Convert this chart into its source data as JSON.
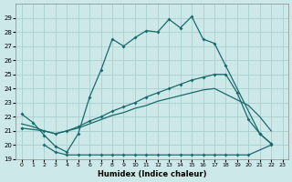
{
  "xlabel": "Humidex (Indice chaleur)",
  "background_color": "#cce8e8",
  "grid_color": "#aacfcf",
  "line_color": "#1a6b6b",
  "xlim": [
    -0.5,
    23.5
  ],
  "ylim": [
    19,
    30
  ],
  "yticks": [
    19,
    20,
    21,
    22,
    23,
    24,
    25,
    26,
    27,
    28,
    29
  ],
  "xticks": [
    0,
    1,
    2,
    3,
    4,
    5,
    6,
    7,
    8,
    9,
    10,
    11,
    12,
    13,
    14,
    15,
    16,
    17,
    18,
    19,
    20,
    21,
    22,
    23
  ],
  "line1_x": [
    0,
    1,
    2,
    3,
    4,
    5,
    6,
    7,
    8,
    9,
    10,
    11,
    12,
    13,
    14,
    15,
    16,
    17,
    18,
    21,
    22
  ],
  "line1_y": [
    22.2,
    21.6,
    20.7,
    19.9,
    19.5,
    20.8,
    23.4,
    25.3,
    27.5,
    27.0,
    27.6,
    28.1,
    28.0,
    28.9,
    28.3,
    29.1,
    27.5,
    27.2,
    25.6,
    20.8,
    20.1
  ],
  "line2_x": [
    2,
    3,
    4,
    5,
    6,
    7,
    8,
    9,
    10,
    11,
    12,
    13,
    14,
    15,
    16,
    17,
    18,
    19,
    20,
    22
  ],
  "line2_y": [
    20.0,
    19.5,
    19.3,
    19.3,
    19.3,
    19.3,
    19.3,
    19.3,
    19.3,
    19.3,
    19.3,
    19.3,
    19.3,
    19.3,
    19.3,
    19.3,
    19.3,
    19.3,
    19.3,
    20.0
  ],
  "line3_x": [
    0,
    2,
    3,
    4,
    5,
    6,
    7,
    8,
    9,
    10,
    11,
    12,
    13,
    14,
    15,
    16,
    17,
    18,
    19,
    20,
    21,
    22
  ],
  "line3_y": [
    21.2,
    21.0,
    20.8,
    21.0,
    21.3,
    21.7,
    22.0,
    22.4,
    22.7,
    23.0,
    23.4,
    23.7,
    24.0,
    24.3,
    24.6,
    24.8,
    25.0,
    25.0,
    23.7,
    21.8,
    20.8,
    20.1
  ],
  "line4_x": [
    0,
    1,
    2,
    3,
    4,
    5,
    6,
    7,
    8,
    9,
    10,
    11,
    12,
    13,
    14,
    15,
    16,
    17,
    18,
    19,
    20,
    21,
    22
  ],
  "line4_y": [
    21.5,
    21.3,
    21.0,
    20.8,
    21.0,
    21.2,
    21.5,
    21.8,
    22.1,
    22.3,
    22.6,
    22.8,
    23.1,
    23.3,
    23.5,
    23.7,
    23.9,
    24.0,
    23.6,
    23.2,
    22.8,
    22.0,
    21.0
  ]
}
